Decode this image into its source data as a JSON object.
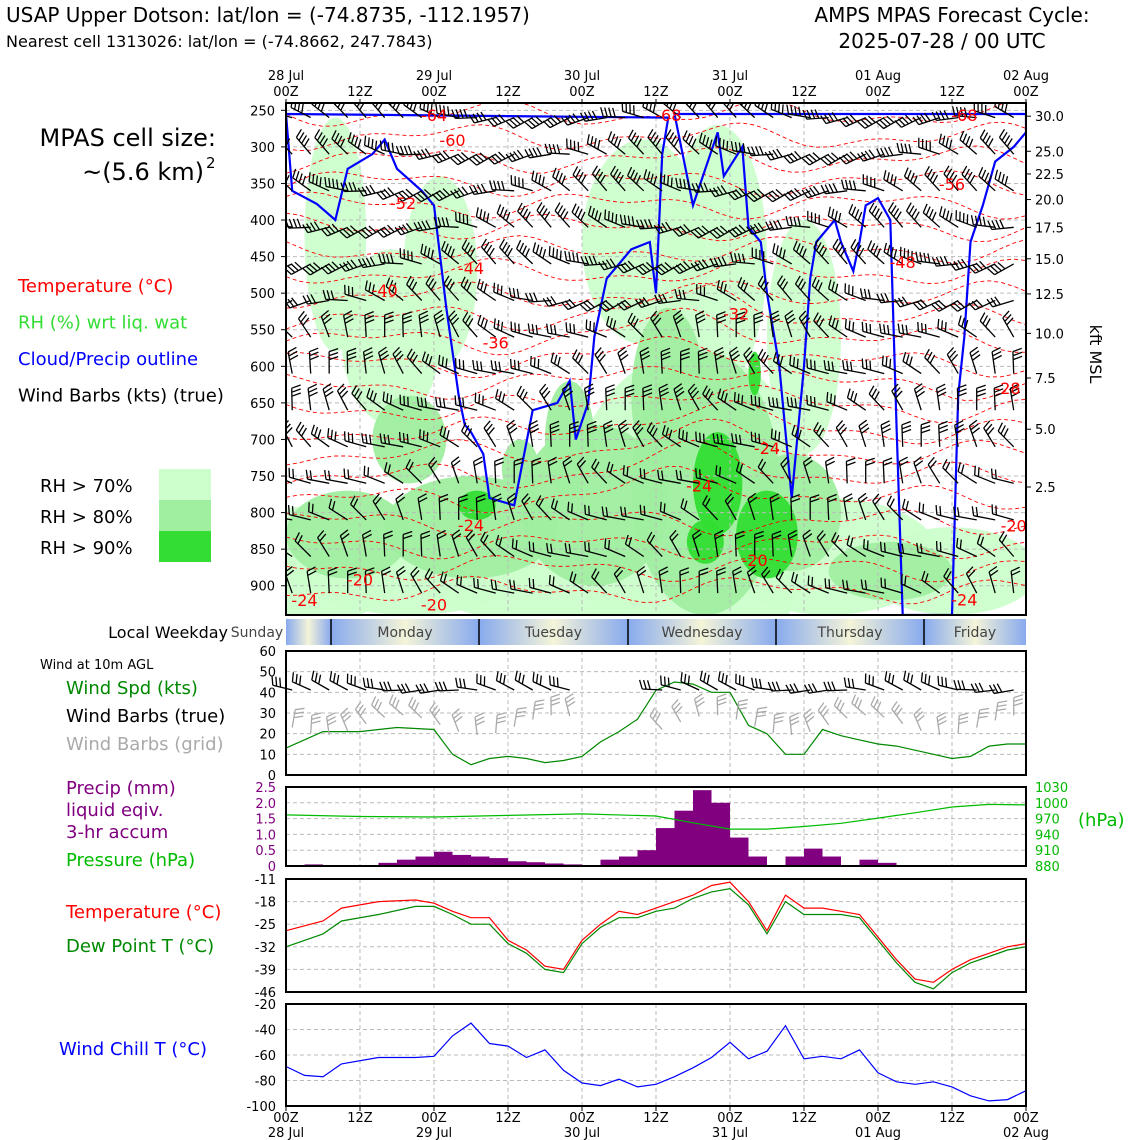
{
  "header": {
    "title_left": "USAP Upper Dotson: lat/lon = (-74.8735, -112.1957)",
    "subtitle_left": "Nearest cell 1313026: lat/lon = (-74.8662, 247.7843)",
    "title_right_1": "AMPS MPAS Forecast Cycle:",
    "title_right_2": "2025-07-28 / 00 UTC"
  },
  "left_panel": {
    "cell_size_label": "MPAS cell size:",
    "cell_size_value": "~(5.6 km)",
    "cell_size_exp": "2",
    "legend": [
      {
        "text": "Temperature (°C)",
        "color": "#ff0000"
      },
      {
        "text": "RH (%) wrt liq. wat",
        "color": "#33dd33"
      },
      {
        "text": "Cloud/Precip outline",
        "color": "#0000ff"
      },
      {
        "text": "Wind Barbs (kts) (true)",
        "color": "#000000"
      }
    ],
    "rh_legend": [
      {
        "text": "RH > 70%",
        "color": "#ccffcc"
      },
      {
        "text": "RH > 80%",
        "color": "#a0eea0"
      },
      {
        "text": "RH > 90%",
        "color": "#33dd33"
      }
    ]
  },
  "time_axis": {
    "top_labels": [
      {
        "day": "28 Jul",
        "hour": "00Z"
      },
      {
        "day": "",
        "hour": "12Z"
      },
      {
        "day": "29 Jul",
        "hour": "00Z"
      },
      {
        "day": "",
        "hour": "12Z"
      },
      {
        "day": "30 Jul",
        "hour": "00Z"
      },
      {
        "day": "",
        "hour": "12Z"
      },
      {
        "day": "31 Jul",
        "hour": "00Z"
      },
      {
        "day": "",
        "hour": "12Z"
      },
      {
        "day": "01 Aug",
        "hour": "00Z"
      },
      {
        "day": "",
        "hour": "12Z"
      },
      {
        "day": "02 Aug",
        "hour": "00Z"
      }
    ]
  },
  "weekday_bar": {
    "label": "Local Weekday",
    "days": [
      "Sunday",
      "Monday",
      "Tuesday",
      "Wednesday",
      "Thursday",
      "Friday"
    ]
  },
  "colors": {
    "temperature": "#ff0000",
    "dewpoint": "#008800",
    "rh70": "#ccffcc",
    "rh80": "#a0eea0",
    "rh90": "#33dd33",
    "cloud": "#0000ff",
    "precip": "#800080",
    "pressure": "#00bb00",
    "windchill": "#0000ff",
    "wind_speed": "#008800",
    "grid_barb": "#aaaaaa"
  },
  "chart_data": [
    {
      "type": "heatmap",
      "name": "time-height cross section",
      "ylabel_right": "kft MSL",
      "y_pressure_ticks": [
        "250",
        "300",
        "350",
        "400",
        "450",
        "500",
        "550",
        "600",
        "650",
        "700",
        "750",
        "800",
        "850",
        "900"
      ],
      "y_height_ticks": [
        "30.0",
        "25.0",
        "22.5",
        "20.0",
        "17.5",
        "15.0",
        "12.5",
        "10.0",
        "7.5",
        "5.0",
        "2.5"
      ],
      "y_height_pressures": [
        258,
        306,
        337,
        372,
        410,
        453,
        501,
        555,
        616,
        686,
        765,
        855
      ],
      "temperature_labels": [
        {
          "text": "-64",
          "hour": 24,
          "p": 258
        },
        {
          "text": "-60",
          "hour": 27,
          "p": 292
        },
        {
          "text": "-52",
          "hour": 19,
          "p": 378
        },
        {
          "text": "-44",
          "hour": 30,
          "p": 467
        },
        {
          "text": "-40",
          "hour": 16,
          "p": 497
        },
        {
          "text": "-36",
          "hour": 34,
          "p": 569
        },
        {
          "text": "-68",
          "hour": 62,
          "p": 258
        },
        {
          "text": "-68",
          "hour": 110,
          "p": 258
        },
        {
          "text": "-56",
          "hour": 108,
          "p": 352
        },
        {
          "text": "-48",
          "hour": 100,
          "p": 459
        },
        {
          "text": "-32",
          "hour": 73,
          "p": 529
        },
        {
          "text": "-28",
          "hour": 117,
          "p": 631
        },
        {
          "text": "-24",
          "hour": 78,
          "p": 713
        },
        {
          "text": "-24",
          "hour": 67,
          "p": 764
        },
        {
          "text": "-24",
          "hour": 30,
          "p": 818
        },
        {
          "text": "-20",
          "hour": 118,
          "p": 819
        },
        {
          "text": "-20",
          "hour": 12,
          "p": 893
        },
        {
          "text": "-24",
          "hour": 3,
          "p": 921
        },
        {
          "text": "-20",
          "hour": 24,
          "p": 927
        },
        {
          "text": "-24",
          "hour": 110,
          "p": 920
        },
        {
          "text": "-20",
          "hour": 76,
          "p": 866
        }
      ]
    },
    {
      "type": "line",
      "name": "surface wind",
      "panel_label": "Wind at 10m AGL",
      "labels": [
        {
          "text": "Wind Spd (kts)",
          "color": "#008800"
        },
        {
          "text": "Wind Barbs (true)",
          "color": "#000000"
        },
        {
          "text": "Wind Barbs (grid)",
          "color": "#aaaaaa"
        }
      ],
      "ylim": [
        0,
        60
      ],
      "yticks": [
        "0",
        "10",
        "20",
        "30",
        "40",
        "50",
        "60"
      ],
      "x_hours": [
        0,
        6,
        12,
        18,
        24,
        27,
        30,
        33,
        36,
        39,
        42,
        45,
        48,
        51,
        54,
        57,
        60,
        63,
        66,
        69,
        72,
        75,
        78,
        81,
        84,
        87,
        90,
        93,
        96,
        99,
        102,
        105,
        108,
        111,
        114,
        117,
        120
      ],
      "speed": [
        13,
        21,
        21,
        23,
        22,
        10,
        5,
        8,
        9,
        8,
        6,
        7,
        9,
        16,
        21,
        27,
        41,
        45,
        44,
        40,
        40,
        24,
        20,
        10,
        10,
        22,
        19,
        17,
        15,
        14,
        12,
        10,
        8,
        9,
        14,
        15,
        15
      ]
    },
    {
      "type": "bar",
      "name": "precipitation and pressure",
      "labels": [
        {
          "text": "Precip (mm)",
          "color": "#800080"
        },
        {
          "text": "liquid eqiv.",
          "color": "#800080"
        },
        {
          "text": "3-hr accum",
          "color": "#800080"
        },
        {
          "text": "Pressure (hPa)",
          "color": "#00bb00"
        }
      ],
      "ylim": [
        0,
        2.5
      ],
      "yticks": [
        "0",
        "0.5",
        "1.0",
        "1.5",
        "2.0",
        "2.5"
      ],
      "y2lim": [
        880,
        1030
      ],
      "y2ticks": [
        "880",
        "910",
        "940",
        "970",
        "1000",
        "1030"
      ],
      "y2label": "(hPa)",
      "x_hours_start": [
        3,
        15,
        18,
        21,
        24,
        27,
        30,
        33,
        36,
        39,
        42,
        45,
        51,
        54,
        57,
        60,
        63,
        66,
        69,
        72,
        75,
        81,
        84,
        87,
        93,
        96
      ],
      "precip": [
        0.05,
        0.1,
        0.2,
        0.3,
        0.45,
        0.35,
        0.3,
        0.25,
        0.15,
        0.12,
        0.08,
        0.05,
        0.2,
        0.3,
        0.5,
        1.2,
        1.75,
        2.4,
        2.0,
        0.9,
        0.3,
        0.3,
        0.55,
        0.3,
        0.2,
        0.1
      ],
      "pressure_hours": [
        0,
        12,
        24,
        36,
        48,
        60,
        66,
        72,
        78,
        84,
        90,
        96,
        102,
        108,
        114,
        120
      ],
      "pressure": [
        977,
        974,
        973,
        976,
        979,
        975,
        962,
        950,
        950,
        955,
        961,
        971,
        981,
        992,
        997,
        996
      ]
    },
    {
      "type": "line",
      "name": "temperature and dew point",
      "labels": [
        {
          "text": "Temperature (°C)",
          "color": "#ff0000"
        },
        {
          "text": "Dew Point T (°C)",
          "color": "#008800"
        }
      ],
      "ylim": [
        -46,
        -11
      ],
      "yticks": [
        "-11",
        "-18",
        "-25",
        "-32",
        "-39",
        "-46"
      ],
      "x_hours": [
        0,
        6,
        9,
        15,
        21,
        24,
        27,
        30,
        33,
        36,
        39,
        42,
        45,
        48,
        51,
        54,
        57,
        60,
        63,
        66,
        69,
        72,
        75,
        78,
        81,
        84,
        87,
        90,
        93,
        96,
        99,
        102,
        105,
        108,
        111,
        114,
        117,
        120
      ],
      "temperature": [
        -27,
        -24,
        -20,
        -18,
        -17.5,
        -18.5,
        -21,
        -23,
        -23,
        -30,
        -33,
        -38,
        -39,
        -30,
        -25,
        -21,
        -22,
        -20,
        -18,
        -16,
        -13,
        -12,
        -18,
        -27,
        -16,
        -20,
        -20,
        -21,
        -22,
        -29,
        -36,
        -42,
        -43,
        -39,
        -36,
        -34,
        -32,
        -31
      ],
      "dewpoint": [
        -32,
        -28,
        -24,
        -22,
        -19.5,
        -19.5,
        -22,
        -25,
        -25,
        -31,
        -34,
        -39,
        -40,
        -31,
        -26,
        -23,
        -23,
        -21,
        -20,
        -17,
        -15,
        -14,
        -19,
        -28,
        -18,
        -22,
        -22,
        -22,
        -23,
        -30,
        -37,
        -43,
        -45,
        -40,
        -37,
        -35,
        -33,
        -32
      ]
    },
    {
      "type": "line",
      "name": "wind chill",
      "labels": [
        {
          "text": "Wind Chill T (°C)",
          "color": "#0000ff"
        }
      ],
      "ylim": [
        -100,
        -20
      ],
      "yticks": [
        "-20",
        "-40",
        "-60",
        "-80",
        "-100"
      ],
      "x_hours": [
        0,
        3,
        6,
        9,
        15,
        21,
        24,
        27,
        30,
        33,
        36,
        39,
        42,
        45,
        48,
        51,
        54,
        57,
        60,
        63,
        66,
        69,
        72,
        75,
        78,
        81,
        84,
        87,
        90,
        93,
        96,
        99,
        102,
        105,
        108,
        111,
        114,
        117,
        120
      ],
      "windchill": [
        -69,
        -76,
        -77,
        -67,
        -62,
        -62,
        -61,
        -45,
        -35,
        -51,
        -53,
        -62,
        -56,
        -72,
        -82,
        -84,
        -79,
        -85,
        -83,
        -77,
        -70,
        -62,
        -50,
        -63,
        -57,
        -37,
        -63,
        -61,
        -63,
        -56,
        -74,
        -81,
        -83,
        -81,
        -85,
        -92,
        -96,
        -95,
        -88
      ]
    }
  ],
  "bottom_axis": {
    "labels": [
      {
        "hour": "00Z",
        "day": "28 Jul"
      },
      {
        "hour": "12Z",
        "day": ""
      },
      {
        "hour": "00Z",
        "day": "29 Jul"
      },
      {
        "hour": "12Z",
        "day": ""
      },
      {
        "hour": "00Z",
        "day": "30 Jul"
      },
      {
        "hour": "12Z",
        "day": ""
      },
      {
        "hour": "00Z",
        "day": "31 Jul"
      },
      {
        "hour": "12Z",
        "day": ""
      },
      {
        "hour": "00Z",
        "day": "01 Aug"
      },
      {
        "hour": "12Z",
        "day": ""
      },
      {
        "hour": "00Z",
        "day": "02 Aug"
      }
    ]
  }
}
